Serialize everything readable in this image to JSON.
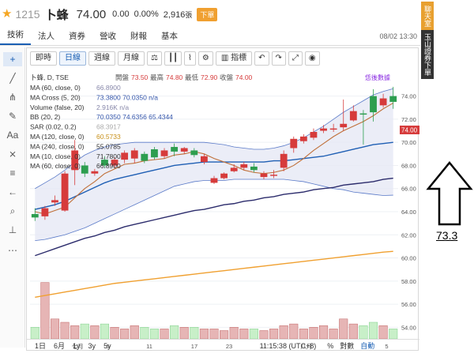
{
  "header": {
    "stock_code": "1215",
    "stock_name": "卜蜂",
    "price": "74.00",
    "change": "0.00",
    "change_pct": "0.00%",
    "volume": "2,916",
    "volume_unit": "張",
    "session": "下單"
  },
  "tabs": [
    "技術",
    "法人",
    "資券",
    "營收",
    "財報",
    "基本"
  ],
  "timestamp": "08/02 13:30",
  "banner": {
    "top": "聊天室",
    "bottom": "玉山證券下單"
  },
  "toolbar": {
    "buttons": [
      "即時",
      "日線",
      "週線",
      "月線",
      "指標"
    ],
    "active": "日線"
  },
  "legend": {
    "symbol": "卜蜂, D, TSE",
    "open_label": "開盤",
    "open": "73.50",
    "high_label": "最高",
    "high": "74.80",
    "low_label": "最低",
    "low": "72.90",
    "close_label": "收盤",
    "close": "74.00",
    "settings_link": "恁後數據",
    "lines": [
      {
        "label": "MA (60, close, 0)",
        "value": "66.8900"
      },
      {
        "label": "MA Cross (5, 20)",
        "value": "73.3800 70.0350 n/a"
      },
      {
        "label": "Volume (false, 20)",
        "value": "2.916K n/a"
      },
      {
        "label": "BB (20, 2)",
        "value": "70.0350 74.6356 65.4344"
      },
      {
        "label": "SAR (0.02, 0.2)",
        "value": "68.3917"
      },
      {
        "label": "MA (120, close, 0)",
        "value": "60.5733"
      },
      {
        "label": "MA (240, close, 0)",
        "value": "55.0785"
      },
      {
        "label": "MA (10, close, 0)",
        "value": "71.7800"
      },
      {
        "label": "MA (60, close, 0)",
        "value": "66.8900"
      }
    ]
  },
  "price_axis": [
    "74.00",
    "72.00",
    "70.00",
    "68.00",
    "66.00",
    "64.00",
    "62.00",
    "60.00",
    "58.00",
    "56.00",
    "54.00"
  ],
  "last_price_tag": "74.00",
  "date_axis": [
    "七月",
    "5",
    "11",
    "17",
    "23",
    "八月",
    "5"
  ],
  "bottom_bar": {
    "ranges": [
      "1日",
      "6月",
      "1y",
      "3y",
      "5y"
    ],
    "clock": "11:15:38 (UTC+8)",
    "pct_label": "%",
    "log_label": "對數",
    "auto_label": "自動"
  },
  "annotation": {
    "value": "73.3"
  },
  "colors": {
    "up": "#2d9e4f",
    "down": "#d63b3b",
    "ma5": "#c0703a",
    "ma20": "#1f5fb4",
    "ma60": "#2c2c6c",
    "ma120": "#f0a030",
    "bb_fill": "#e6e9f5"
  },
  "chart_data": {
    "type": "candlestick",
    "symbol": "卜蜂, D, TSE",
    "period": "D",
    "candles": [
      {
        "o": 63.5,
        "h": 64.3,
        "l": 63.2,
        "c": 63.8
      },
      {
        "o": 64.3,
        "h": 64.5,
        "l": 63.3,
        "c": 63.6
      },
      {
        "o": 65.0,
        "h": 65.4,
        "l": 64.5,
        "c": 64.8
      },
      {
        "o": 67.3,
        "h": 67.5,
        "l": 64.0,
        "c": 64.1
      },
      {
        "o": 69.3,
        "h": 70.2,
        "l": 66.3,
        "c": 67.6
      },
      {
        "o": 67.3,
        "h": 68.3,
        "l": 67.0,
        "c": 68.0
      },
      {
        "o": 67.5,
        "h": 67.7,
        "l": 67.1,
        "c": 67.3
      },
      {
        "o": 68.0,
        "h": 68.8,
        "l": 67.8,
        "c": 68.5
      },
      {
        "o": 68.5,
        "h": 68.7,
        "l": 67.8,
        "c": 68.0
      },
      {
        "o": 69.1,
        "h": 69.3,
        "l": 68.2,
        "c": 68.5
      },
      {
        "o": 69.3,
        "h": 69.5,
        "l": 68.2,
        "c": 68.6
      },
      {
        "o": 68.4,
        "h": 69.2,
        "l": 68.2,
        "c": 69.0
      },
      {
        "o": 68.7,
        "h": 69.6,
        "l": 68.5,
        "c": 69.4
      },
      {
        "o": 69.3,
        "h": 69.5,
        "l": 68.6,
        "c": 68.8
      },
      {
        "o": 69.2,
        "h": 69.9,
        "l": 68.8,
        "c": 69.6
      },
      {
        "o": 69.5,
        "h": 69.6,
        "l": 69.0,
        "c": 69.2
      },
      {
        "o": 68.9,
        "h": 69.5,
        "l": 68.7,
        "c": 69.3
      },
      {
        "o": 68.8,
        "h": 69.0,
        "l": 68.1,
        "c": 68.3
      },
      {
        "o": 66.9,
        "h": 67.1,
        "l": 66.4,
        "c": 66.5
      },
      {
        "o": 67.3,
        "h": 67.4,
        "l": 66.8,
        "c": 66.9
      },
      {
        "o": 67.8,
        "h": 68.1,
        "l": 67.4,
        "c": 67.5
      },
      {
        "o": 68.1,
        "h": 68.3,
        "l": 67.6,
        "c": 67.8
      },
      {
        "o": 67.6,
        "h": 68.2,
        "l": 67.4,
        "c": 67.9
      },
      {
        "o": 67.3,
        "h": 67.5,
        "l": 66.8,
        "c": 67.0
      },
      {
        "o": 67.2,
        "h": 67.6,
        "l": 66.9,
        "c": 67.1
      },
      {
        "o": 69.0,
        "h": 69.3,
        "l": 67.5,
        "c": 67.8
      },
      {
        "o": 70.3,
        "h": 70.5,
        "l": 69.1,
        "c": 69.5
      },
      {
        "o": 70.5,
        "h": 70.7,
        "l": 69.9,
        "c": 70.1
      },
      {
        "o": 70.9,
        "h": 71.2,
        "l": 70.2,
        "c": 70.4
      },
      {
        "o": 71.2,
        "h": 71.5,
        "l": 70.8,
        "c": 71.0
      },
      {
        "o": 71.2,
        "h": 71.6,
        "l": 70.9,
        "c": 71.1
      },
      {
        "o": 71.6,
        "h": 73.7,
        "l": 71.0,
        "c": 71.3
      },
      {
        "o": 72.7,
        "h": 73.2,
        "l": 71.8,
        "c": 71.9
      },
      {
        "o": 72.4,
        "h": 72.8,
        "l": 69.8,
        "c": 72.5
      },
      {
        "o": 72.6,
        "h": 74.6,
        "l": 71.8,
        "c": 74.0
      },
      {
        "o": 73.8,
        "h": 74.2,
        "l": 73.0,
        "c": 73.2
      },
      {
        "o": 73.5,
        "h": 74.8,
        "l": 72.9,
        "c": 74.0
      }
    ],
    "volume": [
      7,
      34,
      12,
      10,
      8,
      9,
      8,
      9,
      7,
      6,
      8,
      7,
      6,
      6,
      8,
      7,
      7,
      6,
      6,
      5,
      7,
      6,
      6,
      5,
      6,
      8,
      9,
      6,
      7,
      8,
      6,
      12,
      9,
      8,
      10,
      8,
      6
    ],
    "ma5": [
      64.0,
      63.8,
      64.1,
      64.4,
      65.2,
      66.0,
      66.6,
      67.3,
      67.7,
      68.1,
      68.2,
      68.4,
      68.5,
      68.6,
      68.9,
      69.0,
      69.2,
      69.0,
      68.6,
      68.3,
      68.0,
      67.6,
      67.4,
      67.3,
      67.4,
      67.6,
      68.0,
      68.6,
      69.3,
      69.9,
      70.5,
      71.0,
      71.4,
      71.8,
      72.3,
      72.9,
      73.4
    ],
    "ma20": [
      64.2,
      64.4,
      64.6,
      64.9,
      65.3,
      65.7,
      66.1,
      66.5,
      66.8,
      67.0,
      67.2,
      67.4,
      67.6,
      67.8,
      68.0,
      68.1,
      68.2,
      68.3,
      68.3,
      68.3,
      68.3,
      68.3,
      68.3,
      68.3,
      68.4,
      68.4,
      68.5,
      68.6,
      68.7,
      68.8,
      69.0,
      69.2,
      69.4,
      69.6,
      69.8,
      69.9,
      70.0
    ],
    "ma60": [
      60.2,
      60.5,
      60.8,
      61.1,
      61.4,
      61.7,
      61.9,
      62.2,
      62.4,
      62.7,
      62.9,
      63.1,
      63.3,
      63.5,
      63.7,
      63.9,
      64.1,
      64.2,
      64.4,
      64.6,
      64.7,
      64.9,
      65.0,
      65.2,
      65.3,
      65.5,
      65.6,
      65.7,
      65.9,
      66.0,
      66.1,
      66.3,
      66.4,
      66.5,
      66.6,
      66.8,
      66.9
    ],
    "ma120": [
      56.6,
      56.75,
      56.9,
      57.05,
      57.2,
      57.35,
      57.5,
      57.65,
      57.8,
      57.9,
      58.0,
      58.1,
      58.2,
      58.3,
      58.4,
      58.5,
      58.6,
      58.7,
      58.8,
      58.9,
      59.0,
      59.1,
      59.2,
      59.3,
      59.4,
      59.5,
      59.6,
      59.7,
      59.8,
      59.9,
      60.0,
      60.1,
      60.2,
      60.3,
      60.4,
      60.5,
      60.57
    ],
    "bb_upper": [
      66.0,
      66.5,
      67.0,
      67.6,
      68.3,
      68.9,
      69.3,
      69.6,
      69.8,
      69.9,
      70.0,
      70.0,
      70.0,
      70.0,
      70.0,
      70.0,
      70.0,
      70.0,
      69.9,
      69.8,
      69.6,
      69.5,
      69.4,
      69.4,
      69.5,
      69.7,
      70.0,
      70.4,
      70.9,
      71.4,
      72.0,
      72.6,
      73.1,
      73.6,
      74.1,
      74.4,
      74.64
    ],
    "bb_lower": [
      61.5,
      61.6,
      61.8,
      62.0,
      62.3,
      62.6,
      63.0,
      63.4,
      63.8,
      64.2,
      64.6,
      65.0,
      65.4,
      65.8,
      66.2,
      66.4,
      66.6,
      66.7,
      66.7,
      66.7,
      66.8,
      66.8,
      66.8,
      66.8,
      66.8,
      66.8,
      66.7,
      66.6,
      66.4,
      66.2,
      66.0,
      65.9,
      65.7,
      65.6,
      65.5,
      65.4,
      65.43
    ],
    "ylim": [
      53,
      75
    ]
  }
}
